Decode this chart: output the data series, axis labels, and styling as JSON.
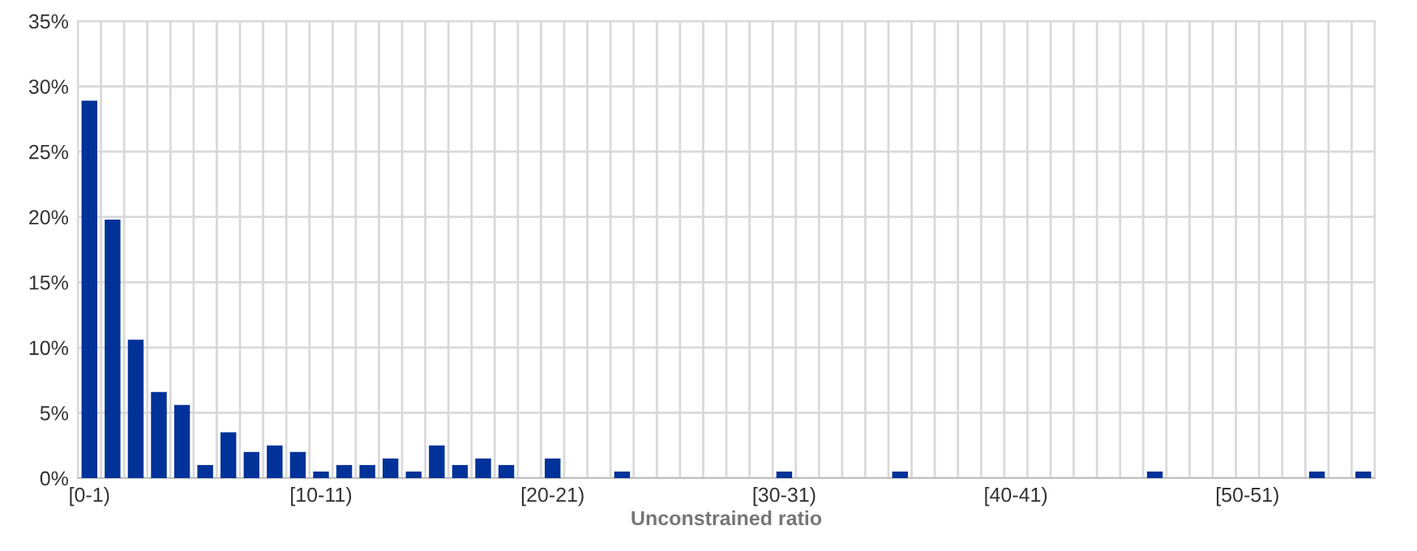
{
  "chart_data": {
    "type": "bar",
    "xlabel": "Unconstrained ratio",
    "categories": [
      "[0-1)",
      null,
      null,
      null,
      null,
      null,
      null,
      null,
      null,
      null,
      "[10-11)",
      null,
      null,
      null,
      null,
      null,
      null,
      null,
      null,
      null,
      "[20-21)",
      null,
      null,
      null,
      null,
      null,
      null,
      null,
      null,
      null,
      "[30-31)",
      null,
      null,
      null,
      null,
      null,
      null,
      null,
      null,
      null,
      "[40-41)",
      null,
      null,
      null,
      null,
      null,
      null,
      null,
      null,
      null,
      "[50-51)",
      null,
      null,
      null,
      null,
      null
    ],
    "values": [
      28.9,
      19.8,
      10.6,
      6.6,
      5.6,
      1,
      3.5,
      2,
      2.5,
      2,
      0.5,
      1,
      1,
      1.5,
      0.5,
      2.5,
      1,
      1.5,
      1,
      0,
      1.5,
      0,
      0,
      0.5,
      0,
      0,
      0,
      0,
      0,
      0,
      0.5,
      0,
      0,
      0,
      0,
      0.5,
      0,
      0,
      0,
      0,
      0,
      0,
      0,
      0,
      0,
      0,
      0.5,
      0,
      0,
      0,
      0,
      0,
      0,
      0.5,
      0,
      0.5
    ],
    "color": "#003299",
    "ylim": [
      0,
      35
    ],
    "yticks": [
      {
        "value": 0,
        "label": "0%"
      },
      {
        "value": 5,
        "label": "5%"
      },
      {
        "value": 10,
        "label": "10%"
      },
      {
        "value": 15,
        "label": "15%"
      },
      {
        "value": 20,
        "label": "20%"
      },
      {
        "value": 25,
        "label": "25%"
      },
      {
        "value": 30,
        "label": "30%"
      },
      {
        "value": 35,
        "label": "35%"
      }
    ],
    "grid": true
  }
}
